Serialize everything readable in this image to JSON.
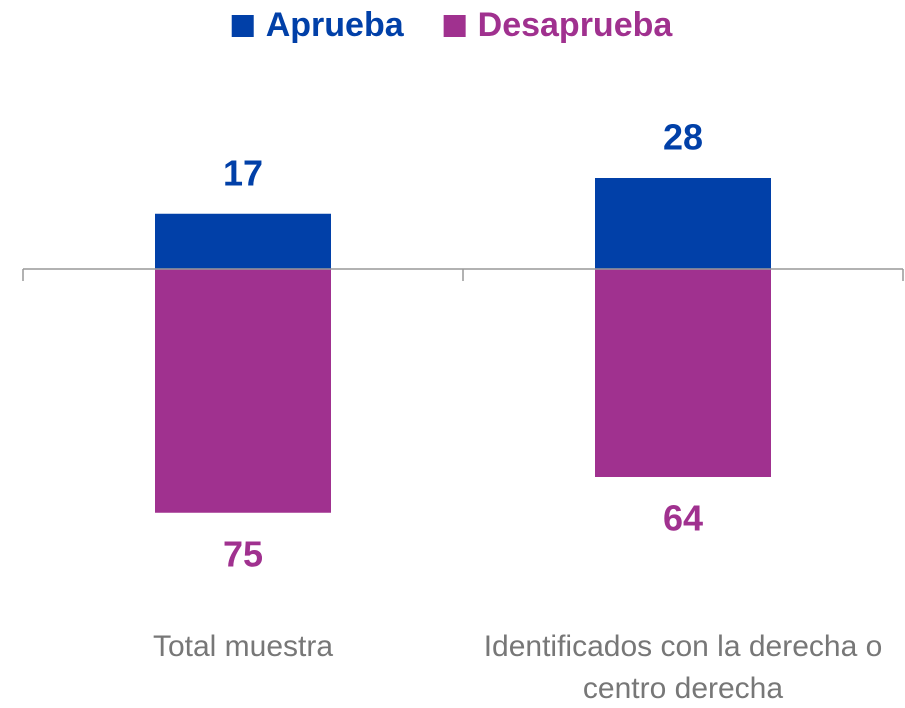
{
  "chart_data": {
    "type": "bar",
    "stacked": "diverging",
    "categories": [
      "Total muestra",
      "Identificados con la derecha o centro derecha"
    ],
    "series": [
      {
        "name": "Aprueba",
        "color": "#0140a8",
        "values": [
          17,
          28
        ]
      },
      {
        "name": "Desaprueba",
        "color": "#a0318f",
        "values": [
          -75,
          -64
        ],
        "value_labels": [
          "75",
          "64"
        ]
      }
    ],
    "ylim": [
      -100,
      40
    ],
    "legend": "top"
  }
}
